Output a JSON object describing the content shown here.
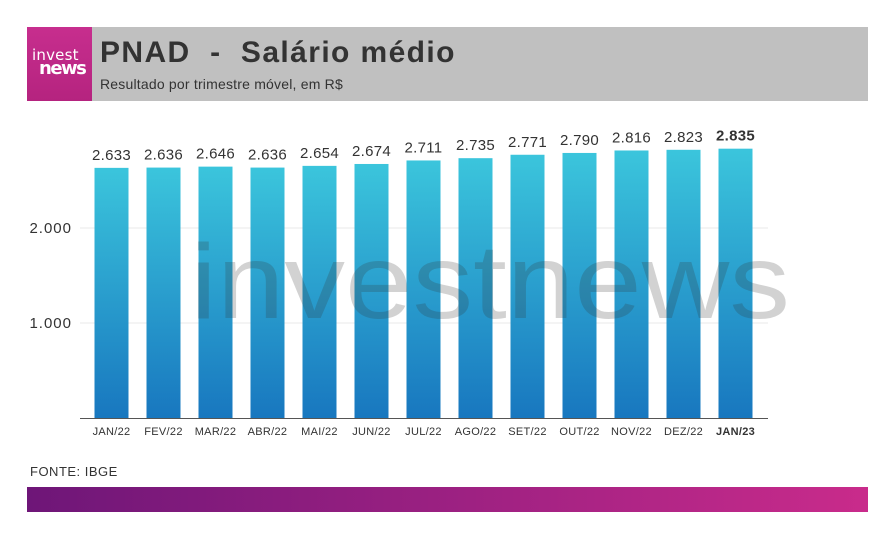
{
  "logo": {
    "line1": "invest",
    "line2": "news"
  },
  "watermark": "investnews",
  "footer": {
    "source": "FONTE: IBGE"
  },
  "colors": {
    "header_bg": "#c0c0c0",
    "logo_bg": "#c72e8e",
    "logo_bg_dark": "#b5237f",
    "bar_top": "#3bc5dc",
    "bar_bottom": "#1877bf",
    "footer_start": "#6e1678",
    "footer_end": "#c92b8b",
    "text": "#333333"
  },
  "chart_data": {
    "type": "bar",
    "title": "PNAD  -  Salário médio",
    "subtitle": "Resultado por trimestre móvel, em R$",
    "xlabel": "",
    "ylabel": "",
    "categories": [
      "JAN/22",
      "FEV/22",
      "MAR/22",
      "ABR/22",
      "MAI/22",
      "JUN/22",
      "JUL/22",
      "AGO/22",
      "SET/22",
      "OUT/22",
      "NOV/22",
      "DEZ/22",
      "JAN/23"
    ],
    "values": [
      2633,
      2636,
      2646,
      2636,
      2654,
      2674,
      2711,
      2735,
      2771,
      2790,
      2816,
      2823,
      2835
    ],
    "value_labels": [
      "2.633",
      "2.636",
      "2.646",
      "2.636",
      "2.654",
      "2.674",
      "2.711",
      "2.735",
      "2.771",
      "2.790",
      "2.816",
      "2.823",
      "2.835"
    ],
    "yticks": [
      1000,
      2000
    ],
    "ytick_labels": [
      "1.000",
      "2.000"
    ],
    "ylim": [
      0,
      3000
    ],
    "grid": true,
    "highlight_index": 12
  }
}
